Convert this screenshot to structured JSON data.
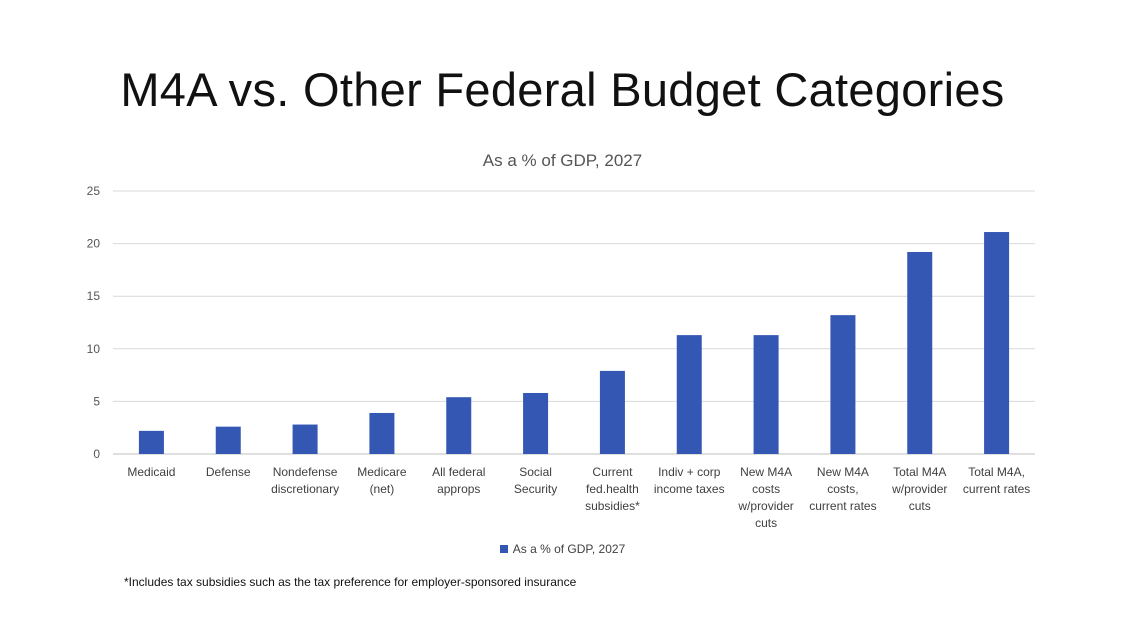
{
  "slide": {
    "title": "M4A vs. Other Federal Budget Categories",
    "footnote": "*Includes tax subsidies such as the tax preference for employer-sponsored insurance"
  },
  "colors": {
    "bar": "#3457b4",
    "gridline": "#d9d9d9",
    "axis": "#bfbfbf"
  },
  "chart_data": {
    "type": "bar",
    "title": "As a % of GDP, 2027",
    "xlabel": "",
    "ylabel": "",
    "ylim": [
      0,
      25
    ],
    "yticks": [
      0,
      5,
      10,
      15,
      20,
      25
    ],
    "grid": true,
    "legend_position": "bottom",
    "categories": [
      [
        "Medicaid"
      ],
      [
        "Defense"
      ],
      [
        "Nondefense",
        "discretionary"
      ],
      [
        "Medicare",
        "(net)"
      ],
      [
        "All federal",
        "approps"
      ],
      [
        "Social",
        "Security"
      ],
      [
        "Current",
        "fed.health",
        "subsidies*"
      ],
      [
        "Indiv + corp",
        "income taxes"
      ],
      [
        "New M4A",
        "costs",
        "w/provider",
        "cuts"
      ],
      [
        "New M4A",
        "costs,",
        "current rates"
      ],
      [
        "Total M4A",
        "w/provider",
        "cuts"
      ],
      [
        "Total M4A,",
        "current rates"
      ]
    ],
    "series": [
      {
        "name": "As a % of GDP, 2027",
        "values": [
          2.2,
          2.6,
          2.8,
          3.9,
          5.4,
          5.8,
          7.9,
          11.3,
          11.3,
          13.2,
          19.2,
          21.1
        ]
      }
    ]
  }
}
